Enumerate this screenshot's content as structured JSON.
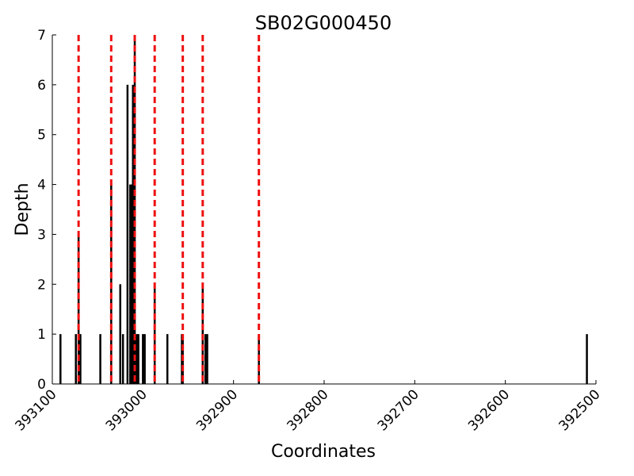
{
  "chart_data": {
    "type": "bar",
    "title": "SB02G000450",
    "xlabel": "Coordinates",
    "ylabel": "Depth",
    "x": [
      393091,
      393074,
      393071,
      393069,
      393047,
      393035,
      393025,
      393022,
      393017,
      393014,
      393013,
      393011,
      393009,
      393007,
      393005,
      393000,
      392998,
      392987,
      392973,
      392957,
      392956,
      392934,
      392931,
      392929,
      392872,
      392510
    ],
    "values": [
      1,
      1,
      3,
      1,
      1,
      4,
      2,
      1,
      6,
      4,
      4,
      6,
      7,
      1,
      1,
      1,
      1,
      2,
      1,
      1,
      1,
      2,
      1,
      1,
      1,
      1
    ],
    "color": "#000000",
    "markers": {
      "x": [
        393071,
        393035,
        393009,
        392987,
        392956,
        392934,
        392872
      ],
      "color": "#ee1111",
      "style": "dashed"
    },
    "xlim": [
      393100,
      392500
    ],
    "xticks": [
      393100,
      393000,
      392900,
      392800,
      392700,
      392600,
      392500
    ],
    "ylim": [
      0,
      7
    ],
    "yticks": [
      0,
      1,
      2,
      3,
      4,
      5,
      6,
      7
    ],
    "grid": false
  }
}
